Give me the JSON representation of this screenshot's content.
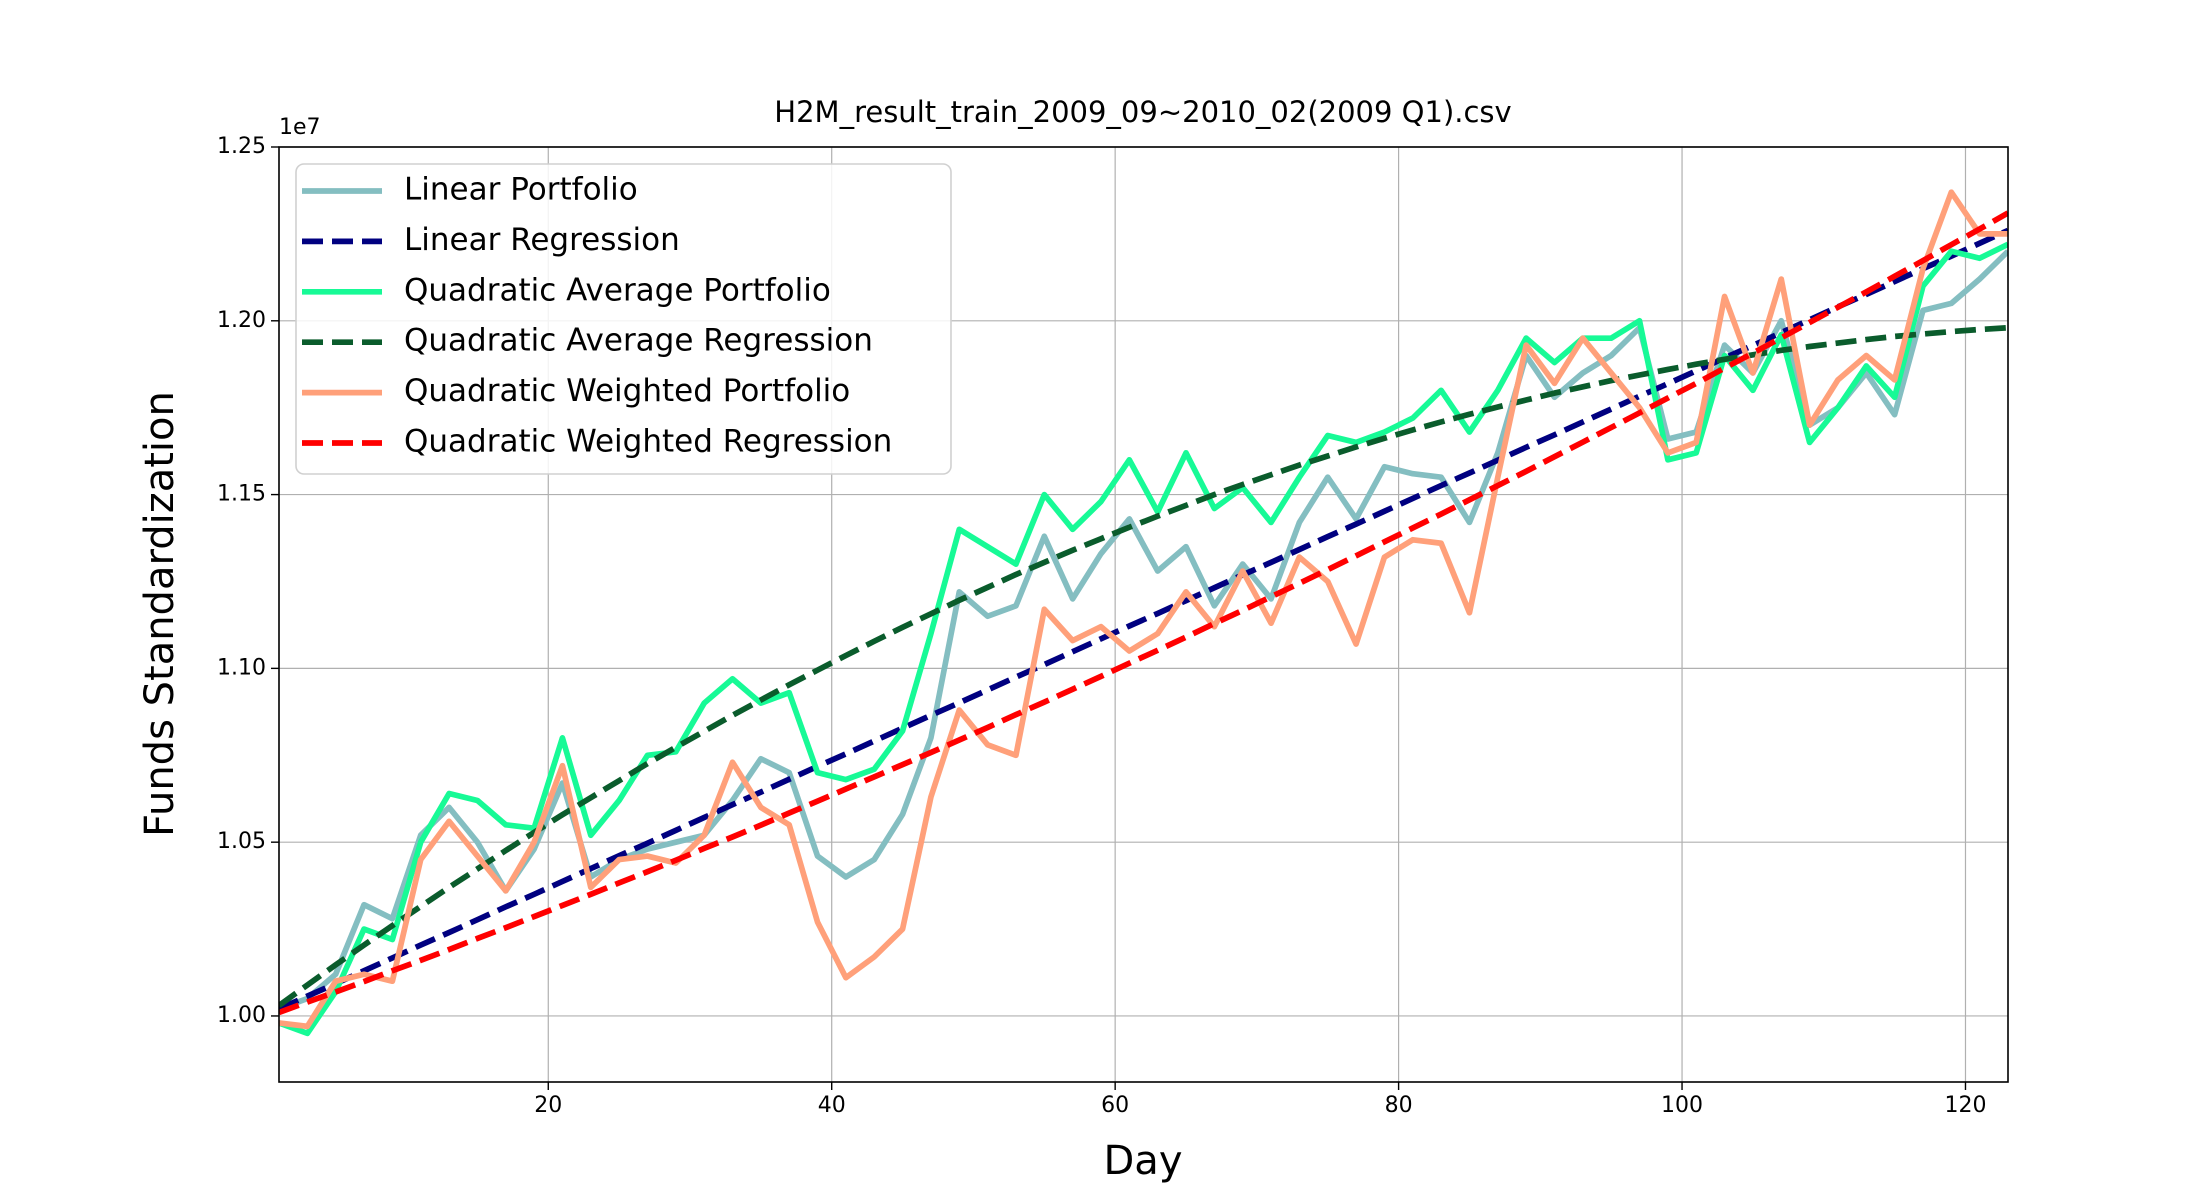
{
  "chart_data": {
    "type": "line",
    "title": "H2M_result_train_2009_09~2010_02(2009 Q1).csv",
    "x_label": "Day",
    "y_label": "Funds Standardization",
    "y_offset_label": "1e7",
    "x": [
      1,
      3,
      5,
      7,
      9,
      11,
      13,
      15,
      17,
      19,
      21,
      23,
      25,
      27,
      29,
      31,
      33,
      35,
      37,
      39,
      41,
      43,
      45,
      47,
      49,
      51,
      53,
      55,
      57,
      59,
      61,
      63,
      65,
      67,
      69,
      71,
      73,
      75,
      77,
      79,
      81,
      83,
      85,
      87,
      89,
      91,
      93,
      95,
      97,
      99,
      101,
      103,
      105,
      107,
      109,
      111,
      113,
      115,
      117,
      119,
      121,
      123
    ],
    "series": [
      {
        "name": "Linear Portfolio",
        "color": "#84bec1",
        "linestyle": "solid",
        "values": [
          1.002,
          1.005,
          1.012,
          1.032,
          1.028,
          1.052,
          1.06,
          1.05,
          1.036,
          1.048,
          1.067,
          1.04,
          1.045,
          1.048,
          1.05,
          1.052,
          1.062,
          1.074,
          1.07,
          1.046,
          1.04,
          1.045,
          1.058,
          1.08,
          1.122,
          1.115,
          1.118,
          1.138,
          1.12,
          1.133,
          1.143,
          1.128,
          1.135,
          1.118,
          1.13,
          1.12,
          1.142,
          1.155,
          1.143,
          1.158,
          1.156,
          1.155,
          1.142,
          1.162,
          1.19,
          1.178,
          1.185,
          1.19,
          1.198,
          1.166,
          1.168,
          1.193,
          1.185,
          1.2,
          1.17,
          1.175,
          1.185,
          1.173,
          1.203,
          1.205,
          1.212,
          1.22
        ]
      },
      {
        "name": "Linear Regression",
        "color": "#000080",
        "linestyle": "dashed",
        "values": [
          1.002,
          1.0057,
          1.0093,
          1.013,
          1.0167,
          1.0204,
          1.024,
          1.0277,
          1.0314,
          1.035,
          1.0387,
          1.0424,
          1.0461,
          1.0497,
          1.0534,
          1.0571,
          1.0608,
          1.0644,
          1.0681,
          1.0718,
          1.0754,
          1.0791,
          1.0828,
          1.0865,
          1.0901,
          1.0938,
          1.0975,
          1.1011,
          1.1048,
          1.1085,
          1.1122,
          1.1158,
          1.1195,
          1.1232,
          1.1269,
          1.1305,
          1.1342,
          1.1379,
          1.1415,
          1.1452,
          1.1489,
          1.1526,
          1.1562,
          1.1599,
          1.1636,
          1.1672,
          1.1709,
          1.1746,
          1.1783,
          1.1819,
          1.1856,
          1.1893,
          1.1929,
          1.1966,
          1.2003,
          1.204,
          1.2076,
          1.2113,
          1.215,
          1.2186,
          1.2223,
          1.226
        ]
      },
      {
        "name": "Quadratic Average Portfolio",
        "color": "#17fa96",
        "linestyle": "solid",
        "values": [
          0.998,
          0.995,
          1.007,
          1.025,
          1.022,
          1.05,
          1.064,
          1.062,
          1.055,
          1.054,
          1.08,
          1.052,
          1.062,
          1.075,
          1.076,
          1.09,
          1.097,
          1.09,
          1.093,
          1.07,
          1.068,
          1.071,
          1.082,
          1.11,
          1.14,
          1.135,
          1.13,
          1.15,
          1.14,
          1.148,
          1.16,
          1.145,
          1.162,
          1.146,
          1.152,
          1.142,
          1.155,
          1.167,
          1.165,
          1.168,
          1.172,
          1.18,
          1.168,
          1.18,
          1.195,
          1.188,
          1.195,
          1.195,
          1.2,
          1.16,
          1.162,
          1.19,
          1.18,
          1.196,
          1.165,
          1.175,
          1.187,
          1.178,
          1.21,
          1.22,
          1.218,
          1.222
        ]
      },
      {
        "name": "Quadratic Average Regression",
        "color": "#0a5c2c",
        "linestyle": "dashed",
        "values": [
          1.003,
          1.0089,
          1.0147,
          1.0204,
          1.026,
          1.0315,
          1.037,
          1.0423,
          1.0476,
          1.0528,
          1.0579,
          1.0628,
          1.0677,
          1.0726,
          1.0773,
          1.0819,
          1.0865,
          1.0909,
          1.0953,
          1.0995,
          1.1037,
          1.1078,
          1.1118,
          1.1157,
          1.1196,
          1.1233,
          1.127,
          1.1305,
          1.134,
          1.1373,
          1.1406,
          1.1438,
          1.1469,
          1.15,
          1.1529,
          1.1557,
          1.1585,
          1.1611,
          1.1637,
          1.1662,
          1.1686,
          1.1709,
          1.1731,
          1.1752,
          1.1772,
          1.1792,
          1.181,
          1.1828,
          1.1844,
          1.186,
          1.1875,
          1.1889,
          1.1902,
          1.1915,
          1.1926,
          1.1936,
          1.1946,
          1.1955,
          1.1962,
          1.1969,
          1.1975,
          1.198
        ]
      },
      {
        "name": "Quadratic Weighted Portfolio",
        "color": "#ffa07a",
        "linestyle": "solid",
        "values": [
          0.998,
          0.997,
          1.01,
          1.012,
          1.01,
          1.045,
          1.056,
          1.046,
          1.036,
          1.05,
          1.072,
          1.037,
          1.045,
          1.046,
          1.044,
          1.052,
          1.073,
          1.06,
          1.055,
          1.027,
          1.011,
          1.017,
          1.025,
          1.063,
          1.088,
          1.078,
          1.075,
          1.117,
          1.108,
          1.112,
          1.105,
          1.11,
          1.122,
          1.112,
          1.128,
          1.113,
          1.132,
          1.125,
          1.107,
          1.132,
          1.137,
          1.136,
          1.116,
          1.155,
          1.193,
          1.182,
          1.195,
          1.185,
          1.175,
          1.162,
          1.165,
          1.207,
          1.185,
          1.212,
          1.17,
          1.183,
          1.19,
          1.183,
          1.215,
          1.237,
          1.225,
          1.225
        ]
      },
      {
        "name": "Quadratic Weighted Regression",
        "color": "#ff0000",
        "linestyle": "dashed",
        "values": [
          1.001,
          1.004,
          1.0069,
          1.0099,
          1.013,
          1.016,
          1.0191,
          1.0223,
          1.0254,
          1.0286,
          1.0318,
          1.035,
          1.0383,
          1.0415,
          1.0448,
          1.0482,
          1.0515,
          1.0549,
          1.0584,
          1.0618,
          1.0653,
          1.0688,
          1.0723,
          1.0758,
          1.0794,
          1.083,
          1.0867,
          1.0903,
          1.094,
          1.0977,
          1.1015,
          1.1052,
          1.109,
          1.1129,
          1.1167,
          1.1206,
          1.1245,
          1.1284,
          1.1324,
          1.1364,
          1.1404,
          1.1444,
          1.1485,
          1.1526,
          1.1567,
          1.1609,
          1.1651,
          1.1693,
          1.1735,
          1.1778,
          1.182,
          1.1864,
          1.1907,
          1.1951,
          1.1995,
          1.2039,
          1.2083,
          1.2128,
          1.2173,
          1.2219,
          1.2264,
          1.231
        ]
      }
    ],
    "xlim": [
      1,
      123
    ],
    "xticks": [
      20,
      40,
      60,
      80,
      100,
      120
    ],
    "ylim": [
      0.981,
      1.25
    ],
    "yticks": [
      {
        "value": 1.0,
        "label": "1.00"
      },
      1.05,
      {
        "value": 1.1,
        "label": "1.10"
      },
      1.15,
      {
        "value": 1.2,
        "label": "1.20"
      },
      1.25
    ],
    "grid": true,
    "legend": "upper left"
  }
}
